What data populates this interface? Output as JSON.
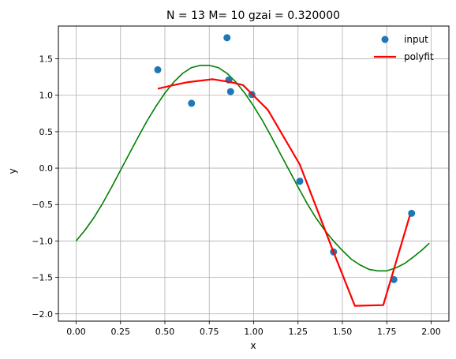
{
  "chart_data": {
    "type": "line",
    "title": "N = 13 M= 10  gzai = 0.320000",
    "xlabel": "x",
    "ylabel": "y",
    "xlim": [
      -0.1,
      2.1
    ],
    "ylim": [
      -2.1,
      1.95
    ],
    "xticks": [
      0.0,
      0.25,
      0.5,
      0.75,
      1.0,
      1.25,
      1.5,
      1.75,
      2.0
    ],
    "xtick_labels": [
      "0.00",
      "0.25",
      "0.50",
      "0.75",
      "1.00",
      "1.25",
      "1.50",
      "1.75",
      "2.00"
    ],
    "yticks": [
      -2.0,
      -1.5,
      -1.0,
      -0.5,
      0.0,
      0.5,
      1.0,
      1.5
    ],
    "ytick_labels": [
      "−2.0",
      "−1.5",
      "−1.0",
      "−0.5",
      "0.0",
      "0.5",
      "1.0",
      "1.5"
    ],
    "grid": true,
    "legend_position": "top-right",
    "series": [
      {
        "name": "",
        "type": "line",
        "color": "#008000",
        "function": "-cos(2*pi*x/2)*1.41 approx sinusoid",
        "x": [
          0.0,
          0.05,
          0.1,
          0.15,
          0.2,
          0.25,
          0.3,
          0.35,
          0.4,
          0.45,
          0.5,
          0.55,
          0.6,
          0.65,
          0.7,
          0.75,
          0.8,
          0.85,
          0.9,
          0.95,
          1.0,
          1.05,
          1.1,
          1.15,
          1.2,
          1.25,
          1.3,
          1.35,
          1.4,
          1.45,
          1.5,
          1.55,
          1.6,
          1.65,
          1.7,
          1.75,
          1.8,
          1.85,
          1.9,
          1.95,
          1.99
        ],
        "y": [
          -1.0,
          -0.85,
          -0.68,
          -0.48,
          -0.26,
          -0.03,
          0.2,
          0.43,
          0.65,
          0.85,
          1.03,
          1.18,
          1.3,
          1.38,
          1.41,
          1.41,
          1.38,
          1.3,
          1.18,
          1.03,
          0.85,
          0.65,
          0.43,
          0.2,
          -0.03,
          -0.26,
          -0.48,
          -0.68,
          -0.85,
          -1.0,
          -1.13,
          -1.25,
          -1.33,
          -1.39,
          -1.41,
          -1.41,
          -1.37,
          -1.31,
          -1.22,
          -1.12,
          -1.03
        ]
      },
      {
        "name": "input",
        "type": "scatter",
        "color": "#1f77b4",
        "x": [
          0.46,
          0.65,
          0.85,
          0.86,
          0.87,
          0.99,
          1.26,
          1.45,
          1.79,
          1.89
        ],
        "y": [
          1.35,
          0.89,
          1.79,
          1.21,
          1.05,
          1.01,
          -0.18,
          -1.15,
          -1.53,
          -0.62
        ]
      },
      {
        "name": "polyfit",
        "type": "line",
        "color": "#ff0000",
        "x": [
          0.46,
          0.55,
          0.63,
          0.77,
          0.87,
          0.94,
          1.08,
          1.26,
          1.45,
          1.57,
          1.73,
          1.88
        ],
        "y": [
          1.09,
          1.14,
          1.18,
          1.22,
          1.18,
          1.14,
          0.8,
          0.05,
          -1.15,
          -1.89,
          -1.88,
          -0.65
        ]
      }
    ]
  }
}
